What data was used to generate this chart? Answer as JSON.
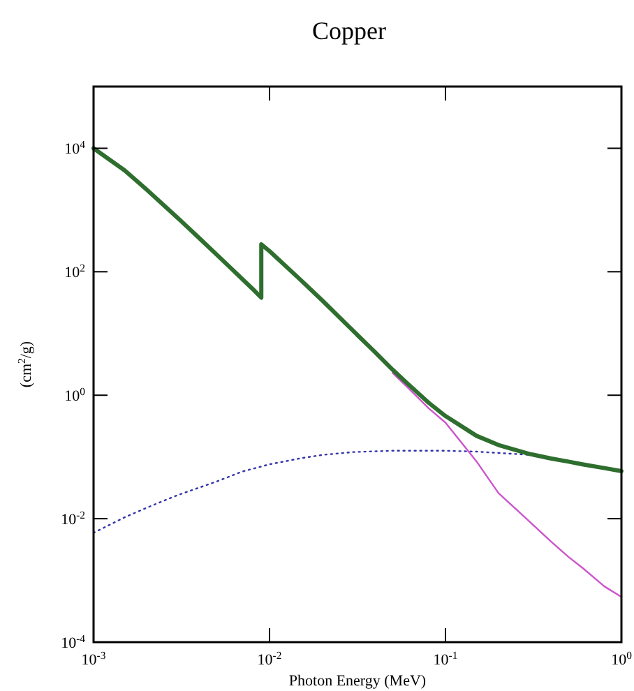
{
  "chart_data": {
    "type": "line",
    "title": "Copper",
    "xlabel": "Photon Energy (MeV)",
    "ylabel": "(cm$^{2}$/g)",
    "log": "xy",
    "grid": false,
    "marker": "none",
    "xlim": [
      0.001,
      1
    ],
    "ylim": [
      0.0001,
      100000
    ],
    "xticks": [
      {
        "value": 0.001,
        "label": "10$^{-3}$"
      },
      {
        "value": 0.01,
        "label": "10$^{-2}$"
      },
      {
        "value": 0.1,
        "label": "10$^{-1}$"
      },
      {
        "value": 1,
        "label": "10$^{0}$"
      }
    ],
    "yticks": [
      {
        "value": 0.0001,
        "label": "10$^{-4}$"
      },
      {
        "value": 0.01,
        "label": "10$^{-2}$"
      },
      {
        "value": 1,
        "label": "10$^{0}$"
      },
      {
        "value": 100,
        "label": "10$^{2}$"
      },
      {
        "value": 10000,
        "label": "10$^{4}$"
      }
    ],
    "series": [
      {
        "color": "#3333aa",
        "line_style": "dotted",
        "x": [
          0.001,
          0.0015,
          0.002,
          0.003,
          0.005,
          0.007,
          0.01,
          0.015,
          0.02,
          0.03,
          0.05,
          0.1,
          0.15,
          0.2,
          0.3
        ],
        "values": [
          0.0059,
          0.0105,
          0.015,
          0.024,
          0.04,
          0.058,
          0.076,
          0.095,
          0.108,
          0.12,
          0.126,
          0.126,
          0.122,
          0.116,
          0.108
        ]
      },
      {
        "color": "#cc55cc",
        "line_style": "solid",
        "x": [
          0.05,
          0.06,
          0.08,
          0.1,
          0.15,
          0.2,
          0.3,
          0.4,
          0.5,
          0.6,
          0.8,
          1
        ],
        "values": [
          2.3,
          1.4,
          0.62,
          0.36,
          0.085,
          0.026,
          0.009,
          0.0042,
          0.0024,
          0.0016,
          0.0008,
          0.00054
        ]
      },
      {
        "color": "#2e6e2e",
        "line_style": "solid",
        "x": [
          0.001,
          0.0015,
          0.002,
          0.003,
          0.004,
          0.005,
          0.006,
          0.008,
          0.00898,
          0.00898,
          0.01,
          0.015,
          0.02,
          0.03,
          0.04,
          0.05,
          0.06,
          0.08,
          0.1,
          0.15,
          0.2,
          0.3,
          0.4,
          0.5,
          0.6,
          0.8,
          1
        ],
        "values": [
          10000,
          4400,
          2150,
          750,
          347,
          190,
          116,
          53,
          38,
          278,
          216,
          74,
          34,
          10.9,
          4.9,
          2.6,
          1.6,
          0.76,
          0.46,
          0.22,
          0.156,
          0.112,
          0.094,
          0.084,
          0.076,
          0.066,
          0.059
        ]
      }
    ]
  }
}
